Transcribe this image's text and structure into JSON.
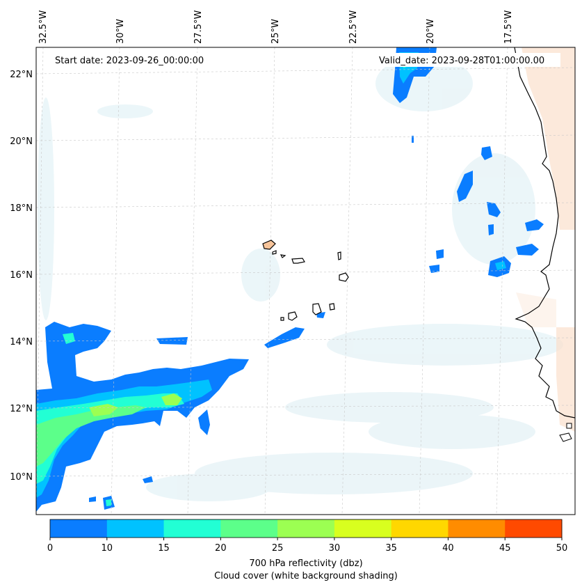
{
  "map": {
    "start_date": "Start date: 2023-09-26_00:00:00",
    "valid_date": "Valid_date: 2023-09-28T01:00:00.00",
    "lon_labels": [
      "32.5°W",
      "30°W",
      "27.5°W",
      "25°W",
      "22.5°W",
      "20°W",
      "17.5°W"
    ],
    "lat_labels": [
      "22°N",
      "20°N",
      "18°N",
      "16°N",
      "14°N",
      "12°N",
      "10°N"
    ],
    "extent": {
      "lon_min": -32.6,
      "lon_max": -15.8,
      "lat_min": 8.9,
      "lat_max": 22.7
    }
  },
  "colorbar": {
    "ticks": [
      "0",
      "10",
      "15",
      "20",
      "25",
      "30",
      "35",
      "40",
      "45",
      "50"
    ],
    "colors": [
      "#0a7dff",
      "#00c2ff",
      "#22ffd4",
      "#5cff8a",
      "#9cff52",
      "#d8ff1f",
      "#ffd700",
      "#ff8c00",
      "#ff4a00"
    ],
    "label_line1": "700 hPa reflectivity (dbz)",
    "label_line2": "Cloud cover (white background shading)"
  }
}
